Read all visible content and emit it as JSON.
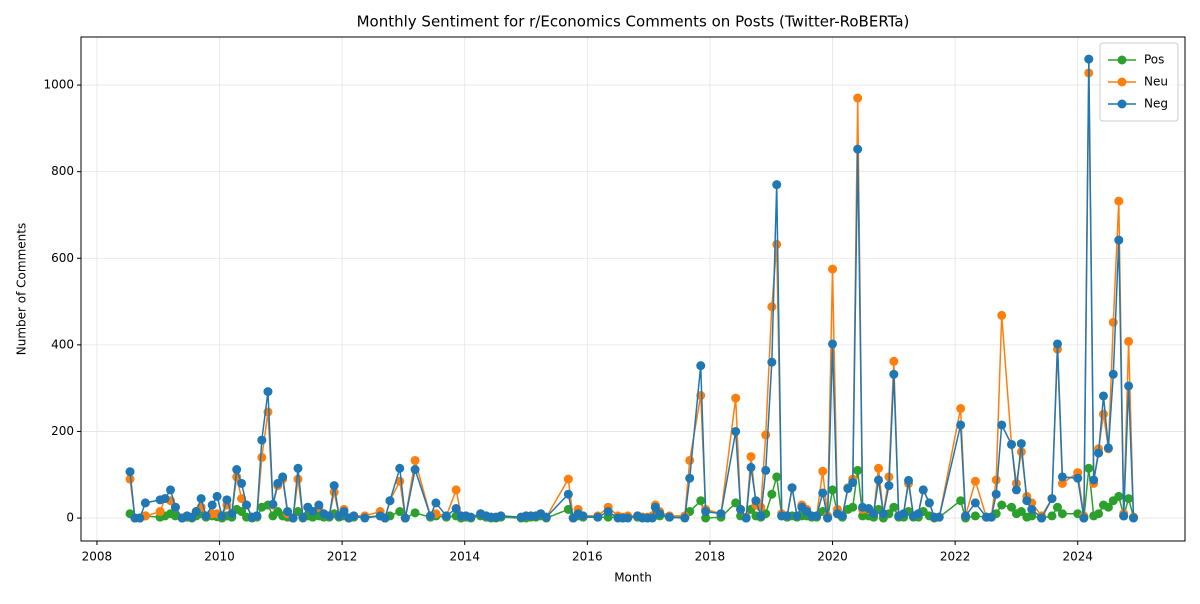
{
  "chart_data": {
    "type": "line",
    "title": "Monthly Sentiment for r/Economics Comments on Posts (Twitter-RoBERTa)",
    "xlabel": "Month",
    "ylabel": "Number of Comments",
    "x": [
      2008.54,
      2008.62,
      2008.7,
      2008.79,
      2009.03,
      2009.11,
      2009.2,
      2009.28,
      2009.39,
      2009.47,
      2009.55,
      2009.62,
      2009.7,
      2009.78,
      2009.88,
      2009.96,
      2010.04,
      2010.12,
      2010.2,
      2010.28,
      2010.36,
      2010.44,
      2010.53,
      2010.61,
      2010.69,
      2010.79,
      2010.87,
      2010.95,
      2011.03,
      2011.11,
      2011.2,
      2011.28,
      2011.36,
      2011.44,
      2011.52,
      2011.62,
      2011.7,
      2011.79,
      2011.87,
      2011.95,
      2012.03,
      2012.11,
      2012.19,
      2012.37,
      2012.62,
      2012.7,
      2012.78,
      2012.94,
      2013.03,
      2013.19,
      2013.44,
      2013.53,
      2013.7,
      2013.86,
      2013.94,
      2014.02,
      2014.1,
      2014.26,
      2014.35,
      2014.43,
      2014.51,
      2014.59,
      2014.92,
      2015.0,
      2015.08,
      2015.16,
      2015.24,
      2015.33,
      2015.69,
      2015.77,
      2015.85,
      2015.93,
      2016.17,
      2016.34,
      2016.5,
      2016.58,
      2016.66,
      2016.82,
      2016.9,
      2016.98,
      2017.06,
      2017.11,
      2017.18,
      2017.34,
      2017.59,
      2017.67,
      2017.85,
      2017.93,
      2018.18,
      2018.42,
      2018.5,
      2018.59,
      2018.67,
      2018.75,
      2018.83,
      2018.91,
      2019.01,
      2019.09,
      2019.17,
      2019.26,
      2019.34,
      2019.42,
      2019.5,
      2019.58,
      2019.66,
      2019.74,
      2019.84,
      2019.92,
      2020.0,
      2020.08,
      2020.16,
      2020.25,
      2020.33,
      2020.41,
      2020.49,
      2020.59,
      2020.67,
      2020.75,
      2020.83,
      2020.92,
      2021.0,
      2021.08,
      2021.16,
      2021.24,
      2021.32,
      2021.4,
      2021.48,
      2021.58,
      2021.66,
      2021.74,
      2022.09,
      2022.17,
      2022.33,
      2022.51,
      2022.59,
      2022.67,
      2022.76,
      2022.92,
      2023.0,
      2023.08,
      2023.17,
      2023.25,
      2023.41,
      2023.58,
      2023.67,
      2023.75,
      2024.0,
      2024.1,
      2024.18,
      2024.26,
      2024.34,
      2024.42,
      2024.5,
      2024.58,
      2024.67,
      2024.75,
      2024.83,
      2024.91
    ],
    "series": [
      {
        "name": "Pos",
        "color": "#2ca02c",
        "values": [
          10,
          0,
          0,
          5,
          2,
          5,
          10,
          5,
          0,
          2,
          0,
          5,
          10,
          2,
          5,
          3,
          0,
          5,
          2,
          20,
          15,
          2,
          0,
          2,
          25,
          30,
          5,
          15,
          5,
          2,
          0,
          15,
          0,
          5,
          2,
          5,
          2,
          2,
          10,
          2,
          5,
          0,
          2,
          2,
          5,
          0,
          5,
          15,
          0,
          12,
          2,
          5,
          2,
          5,
          0,
          2,
          0,
          5,
          2,
          0,
          0,
          2,
          0,
          0,
          2,
          2,
          5,
          0,
          20,
          0,
          5,
          2,
          2,
          2,
          2,
          0,
          2,
          2,
          2,
          0,
          2,
          10,
          5,
          2,
          2,
          15,
          40,
          0,
          2,
          35,
          5,
          0,
          20,
          5,
          2,
          10,
          55,
          95,
          5,
          2,
          5,
          2,
          5,
          5,
          2,
          2,
          15,
          0,
          65,
          10,
          2,
          20,
          25,
          110,
          5,
          5,
          2,
          20,
          0,
          10,
          25,
          2,
          2,
          15,
          2,
          2,
          15,
          5,
          0,
          2,
          40,
          0,
          5,
          2,
          2,
          10,
          30,
          25,
          10,
          15,
          2,
          5,
          0,
          5,
          25,
          10,
          10,
          0,
          115,
          5,
          10,
          30,
          25,
          40,
          50,
          5,
          45,
          2
        ]
      },
      {
        "name": "Neu",
        "color": "#ff7f0e",
        "values": [
          90,
          0,
          0,
          5,
          15,
          45,
          40,
          25,
          0,
          5,
          2,
          15,
          25,
          5,
          10,
          10,
          5,
          30,
          10,
          95,
          45,
          30,
          2,
          5,
          140,
          245,
          30,
          75,
          90,
          10,
          0,
          90,
          2,
          25,
          15,
          25,
          10,
          5,
          60,
          5,
          20,
          0,
          5,
          5,
          15,
          0,
          40,
          85,
          0,
          133,
          5,
          10,
          5,
          65,
          5,
          5,
          2,
          10,
          5,
          2,
          2,
          5,
          2,
          5,
          5,
          5,
          10,
          2,
          90,
          0,
          20,
          5,
          5,
          25,
          5,
          2,
          5,
          5,
          2,
          2,
          5,
          30,
          15,
          5,
          5,
          133,
          283,
          20,
          10,
          277,
          20,
          2,
          142,
          30,
          25,
          192,
          488,
          632,
          10,
          5,
          70,
          5,
          30,
          20,
          5,
          5,
          108,
          5,
          575,
          20,
          5,
          70,
          90,
          970,
          20,
          20,
          10,
          115,
          10,
          95,
          362,
          5,
          10,
          80,
          5,
          10,
          65,
          35,
          2,
          2,
          253,
          5,
          85,
          2,
          2,
          88,
          468,
          170,
          80,
          153,
          50,
          35,
          5,
          45,
          390,
          80,
          105,
          5,
          1028,
          80,
          160,
          240,
          160,
          452,
          732,
          10,
          408,
          2
        ]
      },
      {
        "name": "Neg",
        "color": "#1f77b4",
        "values": [
          107,
          0,
          0,
          35,
          42,
          45,
          65,
          25,
          0,
          5,
          2,
          15,
          45,
          5,
          30,
          50,
          5,
          42,
          10,
          112,
          80,
          30,
          2,
          5,
          180,
          292,
          32,
          80,
          95,
          15,
          0,
          115,
          2,
          25,
          15,
          30,
          10,
          5,
          75,
          5,
          15,
          0,
          5,
          0,
          5,
          0,
          40,
          115,
          0,
          112,
          5,
          35,
          5,
          22,
          5,
          5,
          2,
          10,
          5,
          2,
          2,
          5,
          2,
          5,
          5,
          5,
          10,
          2,
          55,
          0,
          10,
          5,
          2,
          15,
          0,
          0,
          0,
          5,
          0,
          0,
          0,
          25,
          10,
          2,
          0,
          92,
          352,
          15,
          10,
          200,
          20,
          0,
          117,
          40,
          5,
          110,
          360,
          770,
          5,
          5,
          70,
          5,
          25,
          15,
          5,
          5,
          58,
          0,
          402,
          10,
          5,
          68,
          82,
          852,
          25,
          22,
          10,
          88,
          10,
          75,
          332,
          5,
          10,
          87,
          5,
          10,
          65,
          35,
          2,
          2,
          215,
          5,
          35,
          2,
          2,
          55,
          215,
          170,
          65,
          172,
          40,
          20,
          0,
          45,
          402,
          95,
          92,
          0,
          1060,
          88,
          150,
          282,
          162,
          332,
          642,
          5,
          305,
          0
        ]
      }
    ],
    "xlim": [
      2007.74,
      2025.75
    ],
    "xticks": [
      2008,
      2010,
      2012,
      2014,
      2016,
      2018,
      2020,
      2022,
      2024
    ],
    "ylim": [
      -53,
      1111
    ],
    "yticks": [
      0,
      200,
      400,
      600,
      800,
      1000
    ],
    "grid": true,
    "legend": "upper right"
  }
}
